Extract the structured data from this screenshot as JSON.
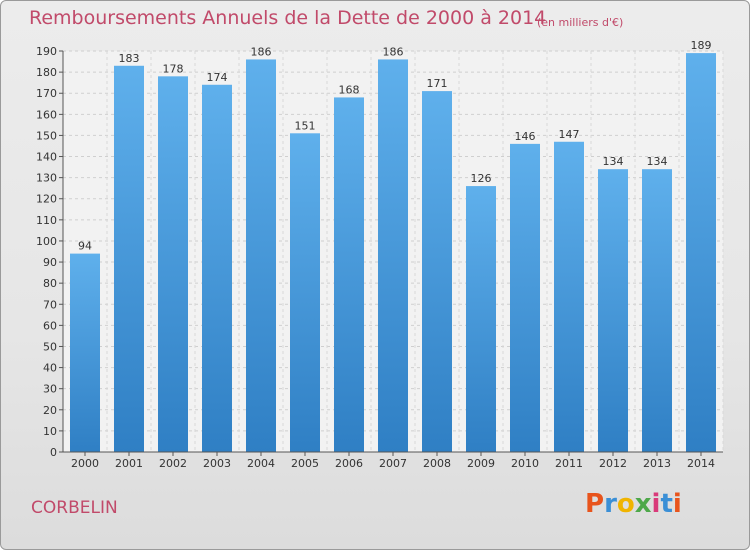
{
  "chart_data": {
    "type": "bar",
    "title": "Remboursements Annuels de la Dette de 2000 à 2014",
    "unit_note": "(en milliers d'€)",
    "categories": [
      "2000",
      "2001",
      "2002",
      "2003",
      "2004",
      "2005",
      "2006",
      "2007",
      "2008",
      "2009",
      "2010",
      "2011",
      "2012",
      "2013",
      "2014"
    ],
    "values": [
      94,
      183,
      178,
      174,
      186,
      151,
      168,
      186,
      171,
      126,
      146,
      147,
      134,
      134,
      189
    ],
    "ylim": [
      0,
      190
    ],
    "ytick_step": 10,
    "grid": true,
    "bar_color": "#4c9de0"
  },
  "footer": {
    "commune": "CORBELIN",
    "logo_letters": [
      "P",
      "r",
      "o",
      "x",
      "i",
      "t",
      "i"
    ]
  },
  "colors": {
    "title": "#c14a6a",
    "accent_bar_top": "#5fb0ec",
    "accent_bar_bottom": "#2f7fc4"
  }
}
